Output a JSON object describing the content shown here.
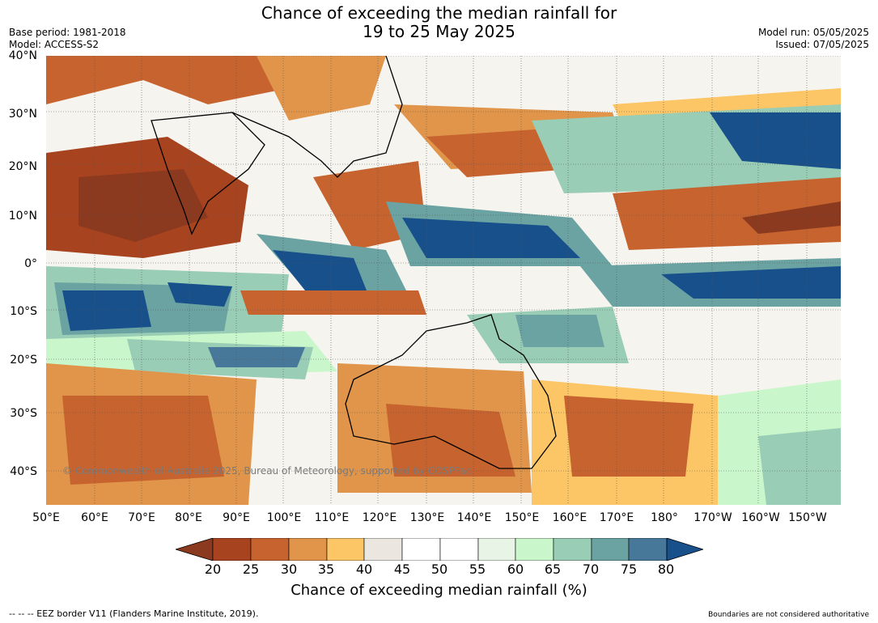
{
  "title": {
    "line1": "Chance of exceeding the median rainfall for",
    "line2": "19 to 25 May 2025"
  },
  "meta": {
    "base_period": "Base period: 1981-2018",
    "model": "Model: ACCESS-S2",
    "model_run": "Model run: 05/05/2025",
    "issued": "Issued: 07/05/2025"
  },
  "map": {
    "lat_labels": [
      "40°N",
      "30°N",
      "20°N",
      "10°N",
      "0°",
      "10°S",
      "20°S",
      "30°S",
      "40°S"
    ],
    "lon_labels": [
      "50°E",
      "60°E",
      "70°E",
      "80°E",
      "90°E",
      "100°E",
      "110°E",
      "120°E",
      "130°E",
      "140°E",
      "150°E",
      "160°E",
      "170°E",
      "180°",
      "170°W",
      "160°W",
      "150°W"
    ],
    "copyright": "© Commonwealth of Australia 2025, Bureau of Meteorology, supported by COSPPac"
  },
  "colorbar": {
    "tick_labels": [
      "20",
      "25",
      "30",
      "35",
      "40",
      "45",
      "50",
      "55",
      "60",
      "65",
      "70",
      "75",
      "80"
    ],
    "title": "Chance of exceeding median rainfall (%)",
    "colors": {
      "under": "#8b3a1f",
      "bins": [
        "#a8431f",
        "#c7632f",
        "#e0954a",
        "#fcc666",
        "#ebe7e0",
        "#ffffff",
        "#ffffff",
        "#e8f5e6",
        "#c9f7cb",
        "#99cdb5",
        "#6ba3a3",
        "#47789a"
      ],
      "over": "#17508b"
    }
  },
  "footer": {
    "eez_note": "-- -- -- EEZ border V11 (Flanders Marine Institute, 2019).",
    "disclaimer": "Boundaries are not considered authoritative"
  }
}
